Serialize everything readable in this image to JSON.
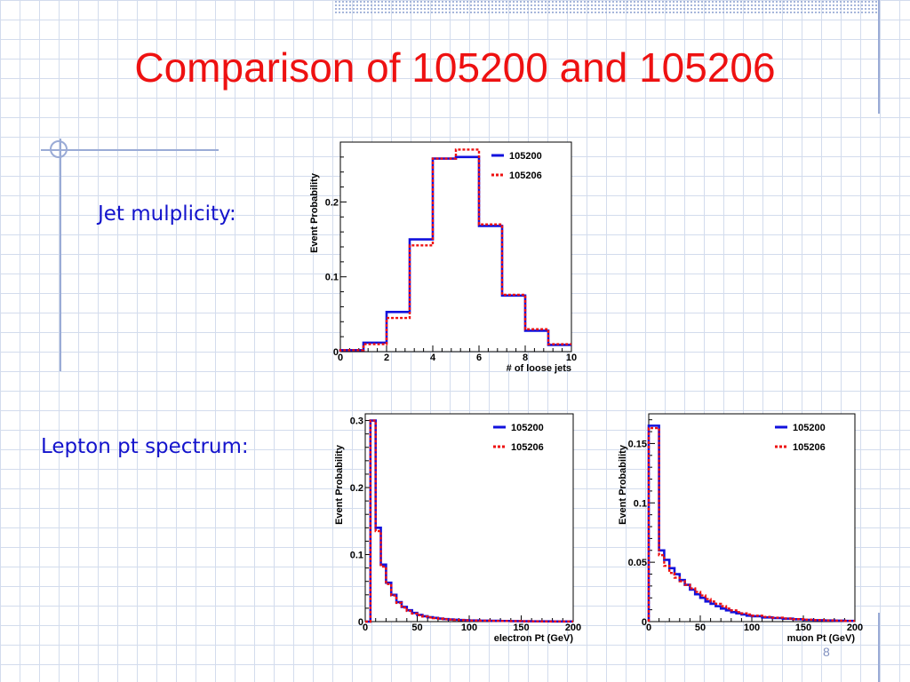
{
  "slide": {
    "title": "Comparison of 105200 and 105206",
    "jet_label": "Jet mulplicity:",
    "lepton_label": "Lepton pt spectrum:",
    "page_number": "8"
  },
  "colors": {
    "title": "#ee1111",
    "label": "#1313cc",
    "series_105200": "#1111dd",
    "series_105206": "#ee1111"
  },
  "chart_data": [
    {
      "id": "jets",
      "type": "line",
      "style": "step-histogram",
      "xlabel": "# of loose jets",
      "ylabel": "Event Probability",
      "xlim": [
        0,
        10
      ],
      "ylim": [
        0,
        0.28
      ],
      "xticks": [
        0,
        2,
        4,
        6,
        8,
        10
      ],
      "yticks": [
        0,
        0.1,
        0.2
      ],
      "ytick_labels": [
        "0",
        "0.1",
        "0.2"
      ],
      "legend_position": "top-right",
      "series": [
        {
          "name": "105200",
          "color": "#1111dd",
          "dash": "solid",
          "edges": [
            0,
            1,
            2,
            3,
            4,
            5,
            6,
            7,
            8,
            9,
            10
          ],
          "values": [
            0.002,
            0.012,
            0.053,
            0.15,
            0.258,
            0.26,
            0.168,
            0.075,
            0.028,
            0.009
          ]
        },
        {
          "name": "105206",
          "color": "#ee1111",
          "dash": "dotted",
          "edges": [
            0,
            1,
            2,
            3,
            4,
            5,
            6,
            7,
            8,
            9,
            10
          ],
          "values": [
            0.002,
            0.01,
            0.045,
            0.142,
            0.258,
            0.27,
            0.17,
            0.076,
            0.03,
            0.01
          ]
        }
      ]
    },
    {
      "id": "electron",
      "type": "line",
      "style": "step-histogram",
      "xlabel": "electron Pt (GeV)",
      "ylabel": "Event Probability",
      "xlim": [
        0,
        200
      ],
      "ylim": [
        0,
        0.31
      ],
      "xticks": [
        0,
        50,
        100,
        150,
        200
      ],
      "yticks": [
        0,
        0.1,
        0.2,
        0.3
      ],
      "ytick_labels": [
        "0",
        "0.1",
        "0.2",
        "0.3"
      ],
      "legend_position": "top-right",
      "series": [
        {
          "name": "105200",
          "color": "#1111dd",
          "dash": "solid",
          "edges": [
            0,
            5,
            10,
            15,
            20,
            25,
            30,
            35,
            40,
            45,
            50,
            55,
            60,
            65,
            70,
            75,
            80,
            85,
            90,
            95,
            100,
            110,
            120,
            130,
            140,
            150,
            160,
            170,
            180,
            190,
            200
          ],
          "values": [
            0.0,
            0.3,
            0.14,
            0.085,
            0.058,
            0.04,
            0.029,
            0.022,
            0.017,
            0.013,
            0.01,
            0.008,
            0.0065,
            0.0055,
            0.0045,
            0.0038,
            0.0032,
            0.0028,
            0.0024,
            0.0021,
            0.0018,
            0.0015,
            0.0012,
            0.001,
            0.0008,
            0.0006,
            0.0005,
            0.0004,
            0.0003,
            0.0002
          ]
        },
        {
          "name": "105206",
          "color": "#ee1111",
          "dash": "dotted",
          "edges": [
            0,
            5,
            10,
            15,
            20,
            25,
            30,
            35,
            40,
            45,
            50,
            55,
            60,
            65,
            70,
            75,
            80,
            85,
            90,
            95,
            100,
            110,
            120,
            130,
            140,
            150,
            160,
            170,
            180,
            190,
            200
          ],
          "values": [
            0.0,
            0.3,
            0.135,
            0.082,
            0.056,
            0.039,
            0.028,
            0.021,
            0.016,
            0.012,
            0.0095,
            0.0075,
            0.0062,
            0.0052,
            0.0043,
            0.0036,
            0.003,
            0.0026,
            0.0022,
            0.0019,
            0.0016,
            0.0014,
            0.0011,
            0.0009,
            0.0007,
            0.0005,
            0.0004,
            0.0003,
            0.0002,
            0.0002
          ]
        }
      ]
    },
    {
      "id": "muon",
      "type": "line",
      "style": "step-histogram",
      "xlabel": "muon Pt (GeV)",
      "ylabel": "Event Probability",
      "xlim": [
        0,
        200
      ],
      "ylim": [
        0,
        0.175
      ],
      "xticks": [
        0,
        50,
        100,
        150,
        200
      ],
      "yticks": [
        0,
        0.05,
        0.1,
        0.15
      ],
      "ytick_labels": [
        "0",
        "0.05",
        "0.1",
        "0.15"
      ],
      "legend_position": "top-right",
      "series": [
        {
          "name": "105200",
          "color": "#1111dd",
          "dash": "solid",
          "edges": [
            0,
            5,
            10,
            15,
            20,
            25,
            30,
            35,
            40,
            45,
            50,
            55,
            60,
            65,
            70,
            75,
            80,
            85,
            90,
            95,
            100,
            110,
            120,
            130,
            140,
            150,
            160,
            170,
            180,
            190,
            200
          ],
          "values": [
            0.165,
            0.165,
            0.06,
            0.052,
            0.045,
            0.04,
            0.035,
            0.031,
            0.027,
            0.023,
            0.02,
            0.017,
            0.015,
            0.013,
            0.011,
            0.0095,
            0.008,
            0.007,
            0.006,
            0.005,
            0.0045,
            0.0035,
            0.003,
            0.0025,
            0.002,
            0.0015,
            0.0012,
            0.001,
            0.0008,
            0.0006
          ]
        },
        {
          "name": "105206",
          "color": "#ee1111",
          "dash": "dotted",
          "edges": [
            0,
            5,
            10,
            15,
            20,
            25,
            30,
            35,
            40,
            45,
            50,
            55,
            60,
            65,
            70,
            75,
            80,
            85,
            90,
            95,
            100,
            110,
            120,
            130,
            140,
            150,
            160,
            170,
            180,
            190,
            200
          ],
          "values": [
            0.163,
            0.163,
            0.056,
            0.047,
            0.041,
            0.037,
            0.034,
            0.031,
            0.028,
            0.025,
            0.022,
            0.019,
            0.017,
            0.015,
            0.013,
            0.011,
            0.0095,
            0.008,
            0.007,
            0.006,
            0.005,
            0.004,
            0.0033,
            0.0027,
            0.0021,
            0.0016,
            0.0013,
            0.001,
            0.0008,
            0.0006
          ]
        }
      ]
    }
  ]
}
